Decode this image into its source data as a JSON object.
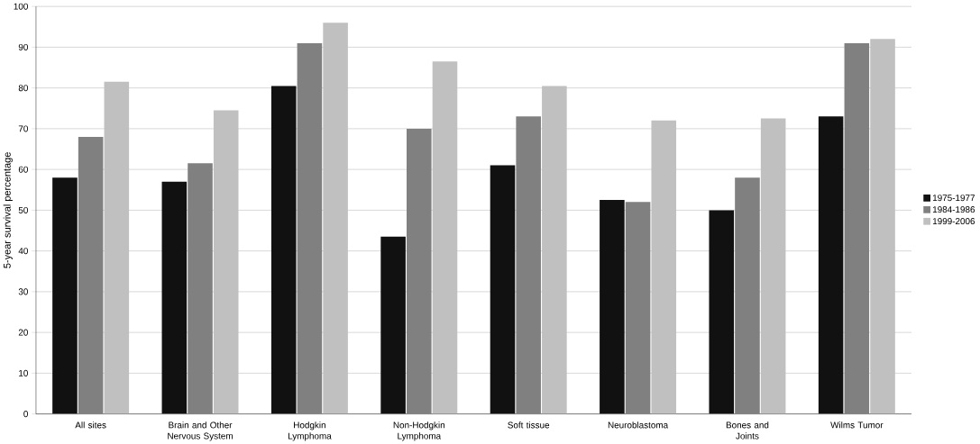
{
  "chart_data": {
    "type": "bar",
    "ylabel": "5-year survival percentage",
    "categories": [
      "All sites",
      "Brain and Other Nervous System",
      "Hodgkin Lymphoma",
      "Non-Hodgkin Lymphoma",
      "Soft tissue",
      "Neuroblastoma",
      "Bones and Joints",
      "Wilms Tumor"
    ],
    "series": [
      {
        "name": "1975-1977",
        "color": "#111111",
        "values": [
          58,
          57,
          80.5,
          43.5,
          61,
          52.5,
          50,
          73
        ]
      },
      {
        "name": "1984-1986",
        "color": "#808080",
        "values": [
          68,
          61.5,
          91,
          70,
          73,
          52,
          58,
          91
        ]
      },
      {
        "name": "1999-2006",
        "color": "#c0c0c0",
        "values": [
          81.5,
          74.5,
          96,
          86.5,
          80.5,
          72,
          72.5,
          92
        ]
      }
    ],
    "ylim": [
      0,
      100
    ],
    "yticks": [
      0,
      10,
      20,
      30,
      40,
      50,
      60,
      70,
      80,
      90,
      100
    ],
    "grid": "y",
    "legend": "right"
  }
}
